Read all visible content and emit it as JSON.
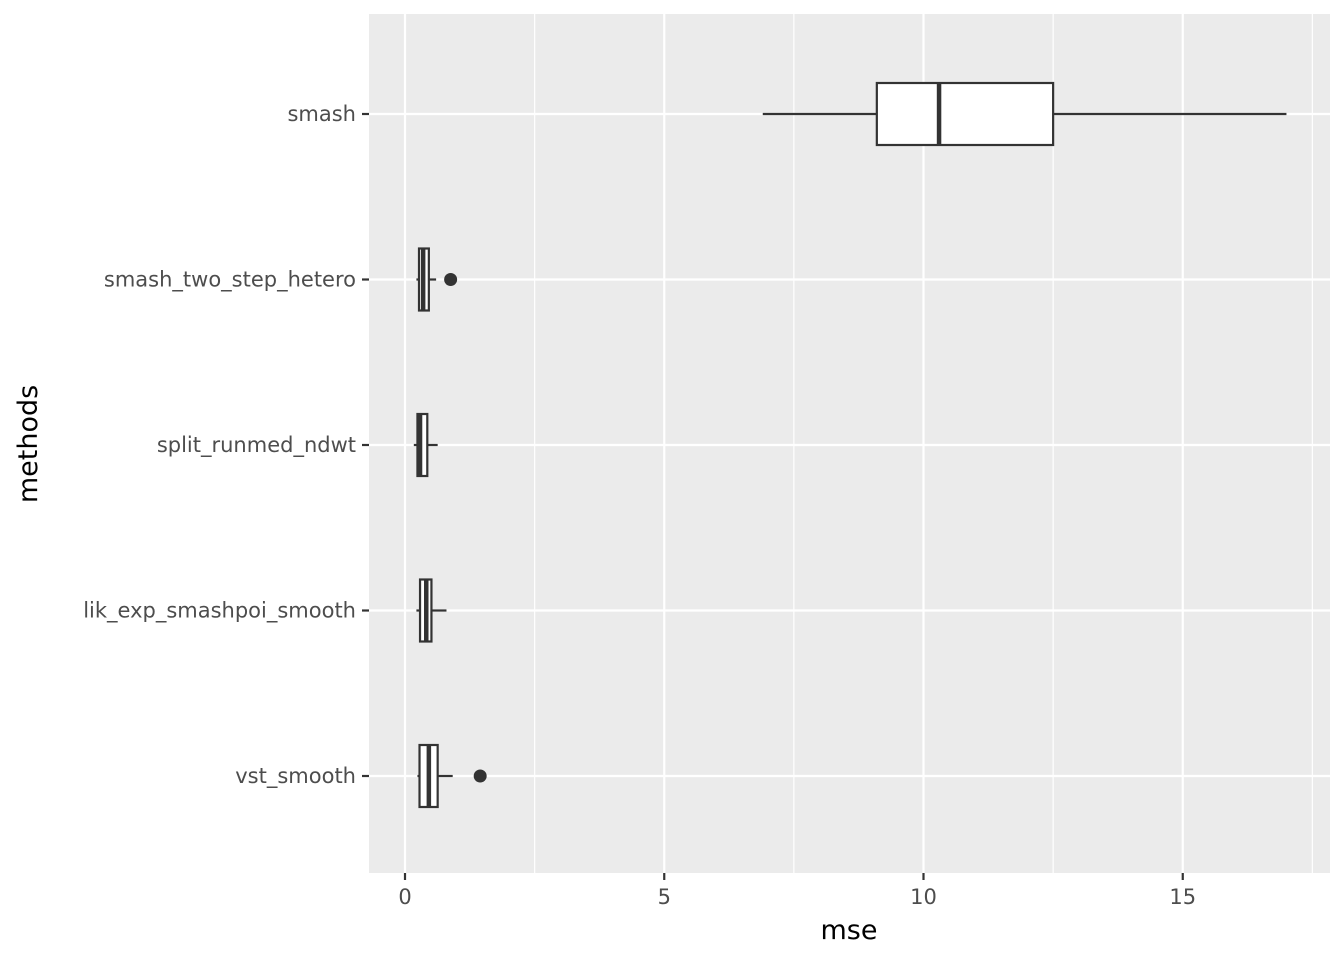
{
  "chart_data": {
    "type": "boxplot",
    "orientation": "horizontal",
    "xlabel": "mse",
    "ylabel": "methods",
    "xlim": [
      -0.7,
      17.6
    ],
    "x_ticks": [
      0,
      5,
      10,
      15
    ],
    "x_tick_labels": [
      "0",
      "5",
      "10",
      "15"
    ],
    "grid": true,
    "panel_background": "#ebebeb",
    "grid_color": "#ffffff",
    "box_fill": "#ffffff",
    "box_stroke": "#333333",
    "categories": [
      "smash",
      "smash_two_step_hetero",
      "split_runmed_ndwt",
      "lik_exp_smashpoi_smooth",
      "vst_smooth"
    ],
    "boxes": [
      {
        "label": "smash",
        "whisker_low": 6.9,
        "q1": 9.1,
        "median": 10.3,
        "q3": 12.5,
        "whisker_high": 17.0,
        "outliers": []
      },
      {
        "label": "smash_two_step_hetero",
        "whisker_low": 0.22,
        "q1": 0.27,
        "median": 0.35,
        "q3": 0.46,
        "whisker_high": 0.6,
        "outliers": [
          0.88
        ]
      },
      {
        "label": "split_runmed_ndwt",
        "whisker_low": 0.17,
        "q1": 0.24,
        "median": 0.29,
        "q3": 0.43,
        "whisker_high": 0.63,
        "outliers": []
      },
      {
        "label": "lik_exp_smashpoi_smooth",
        "whisker_low": 0.22,
        "q1": 0.29,
        "median": 0.41,
        "q3": 0.51,
        "whisker_high": 0.8,
        "outliers": []
      },
      {
        "label": "vst_smooth",
        "whisker_low": 0.24,
        "q1": 0.28,
        "median": 0.46,
        "q3": 0.63,
        "whisker_high": 0.92,
        "outliers": [
          1.45
        ]
      }
    ]
  }
}
